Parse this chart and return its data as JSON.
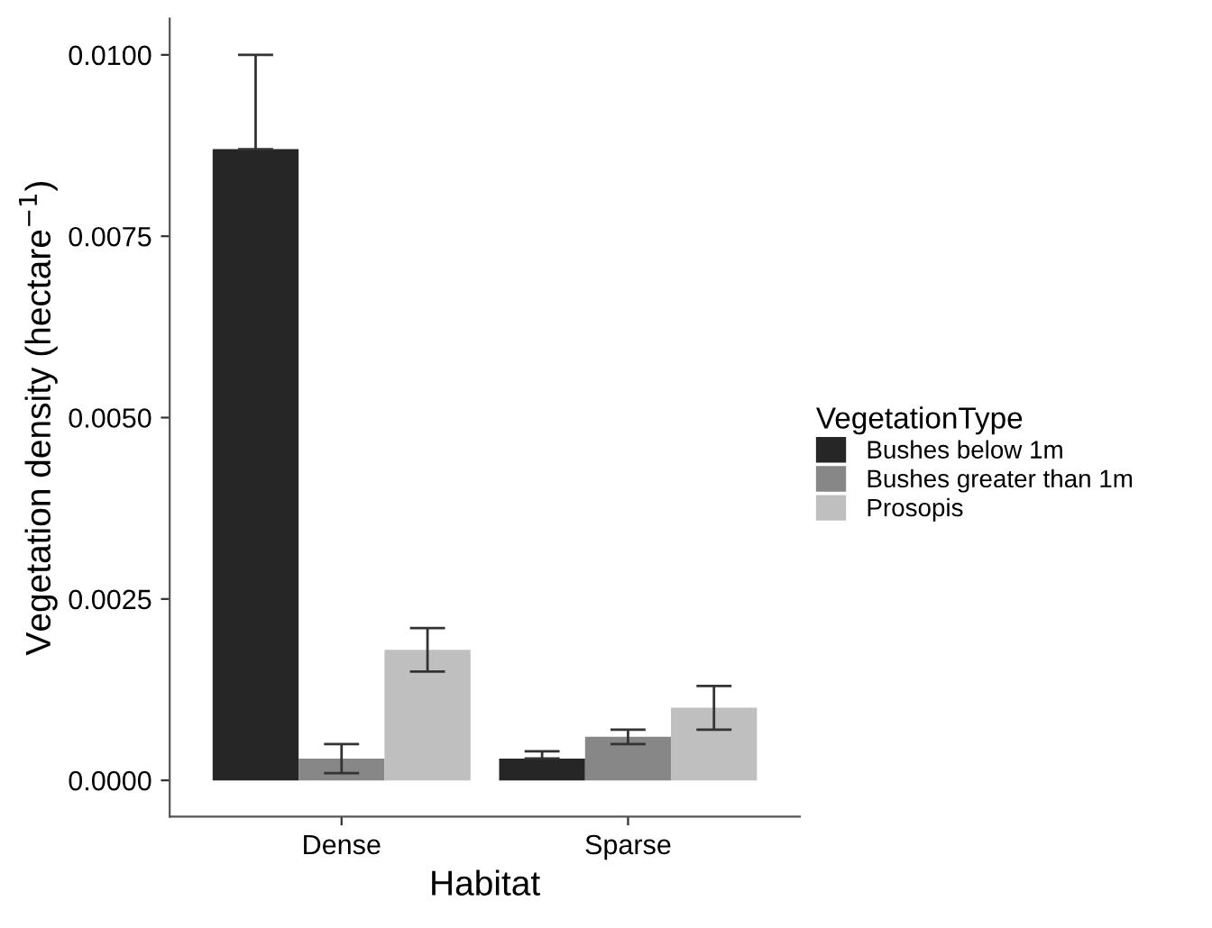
{
  "chart_data": {
    "type": "bar",
    "xlabel": "Habitat",
    "ylabel": "Vegetation density (hectare$^{−1}$)",
    "legend_title": "VegetationType",
    "categories": [
      "Dense",
      "Sparse"
    ],
    "series": [
      {
        "name": "Bushes below 1m",
        "color": "#262626",
        "values": [
          0.0087,
          0.0003
        ],
        "errors": [
          [
            0.0087,
            0.01
          ],
          [
            0.0003,
            0.0004
          ]
        ]
      },
      {
        "name": "Bushes greater than 1m",
        "color": "#878787",
        "values": [
          0.0003,
          0.0006
        ],
        "errors": [
          [
            0.0001,
            0.0005
          ],
          [
            0.0005,
            0.0007
          ]
        ]
      },
      {
        "name": "Prosopis",
        "color": "#bfbfbf",
        "values": [
          0.0018,
          0.001
        ],
        "errors": [
          [
            0.0015,
            0.0021
          ],
          [
            0.0007,
            0.0013
          ]
        ]
      }
    ],
    "ylim": [
      -0.0005,
      0.0105
    ],
    "yticks": [
      {
        "value": 0,
        "label": "0.0000"
      },
      {
        "value": 0.0025,
        "label": "0.0025"
      },
      {
        "value": 0.005,
        "label": "0.0050"
      },
      {
        "value": 0.0075,
        "label": "0.0075"
      },
      {
        "value": 0.01,
        "label": "0.0100"
      }
    ],
    "grid": false,
    "legend": "right"
  }
}
